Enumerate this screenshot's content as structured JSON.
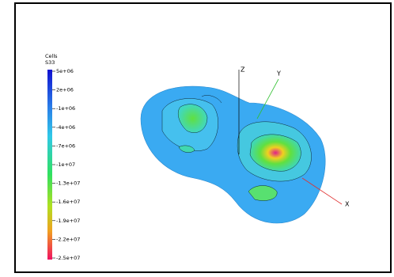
{
  "colorbar": {
    "title": "Cells",
    "subtitle": "S33",
    "labels": [
      "5e+06",
      "2e+06",
      "-1e+06",
      "-4e+06",
      "-7e+06",
      "-1e+07",
      "-1.3e+07",
      "-1.6e+07",
      "-1.9e+07",
      "-2.2e+07",
      "-2.5e+07"
    ]
  },
  "axes": {
    "x": "X",
    "y": "Y",
    "z": "Z"
  }
}
